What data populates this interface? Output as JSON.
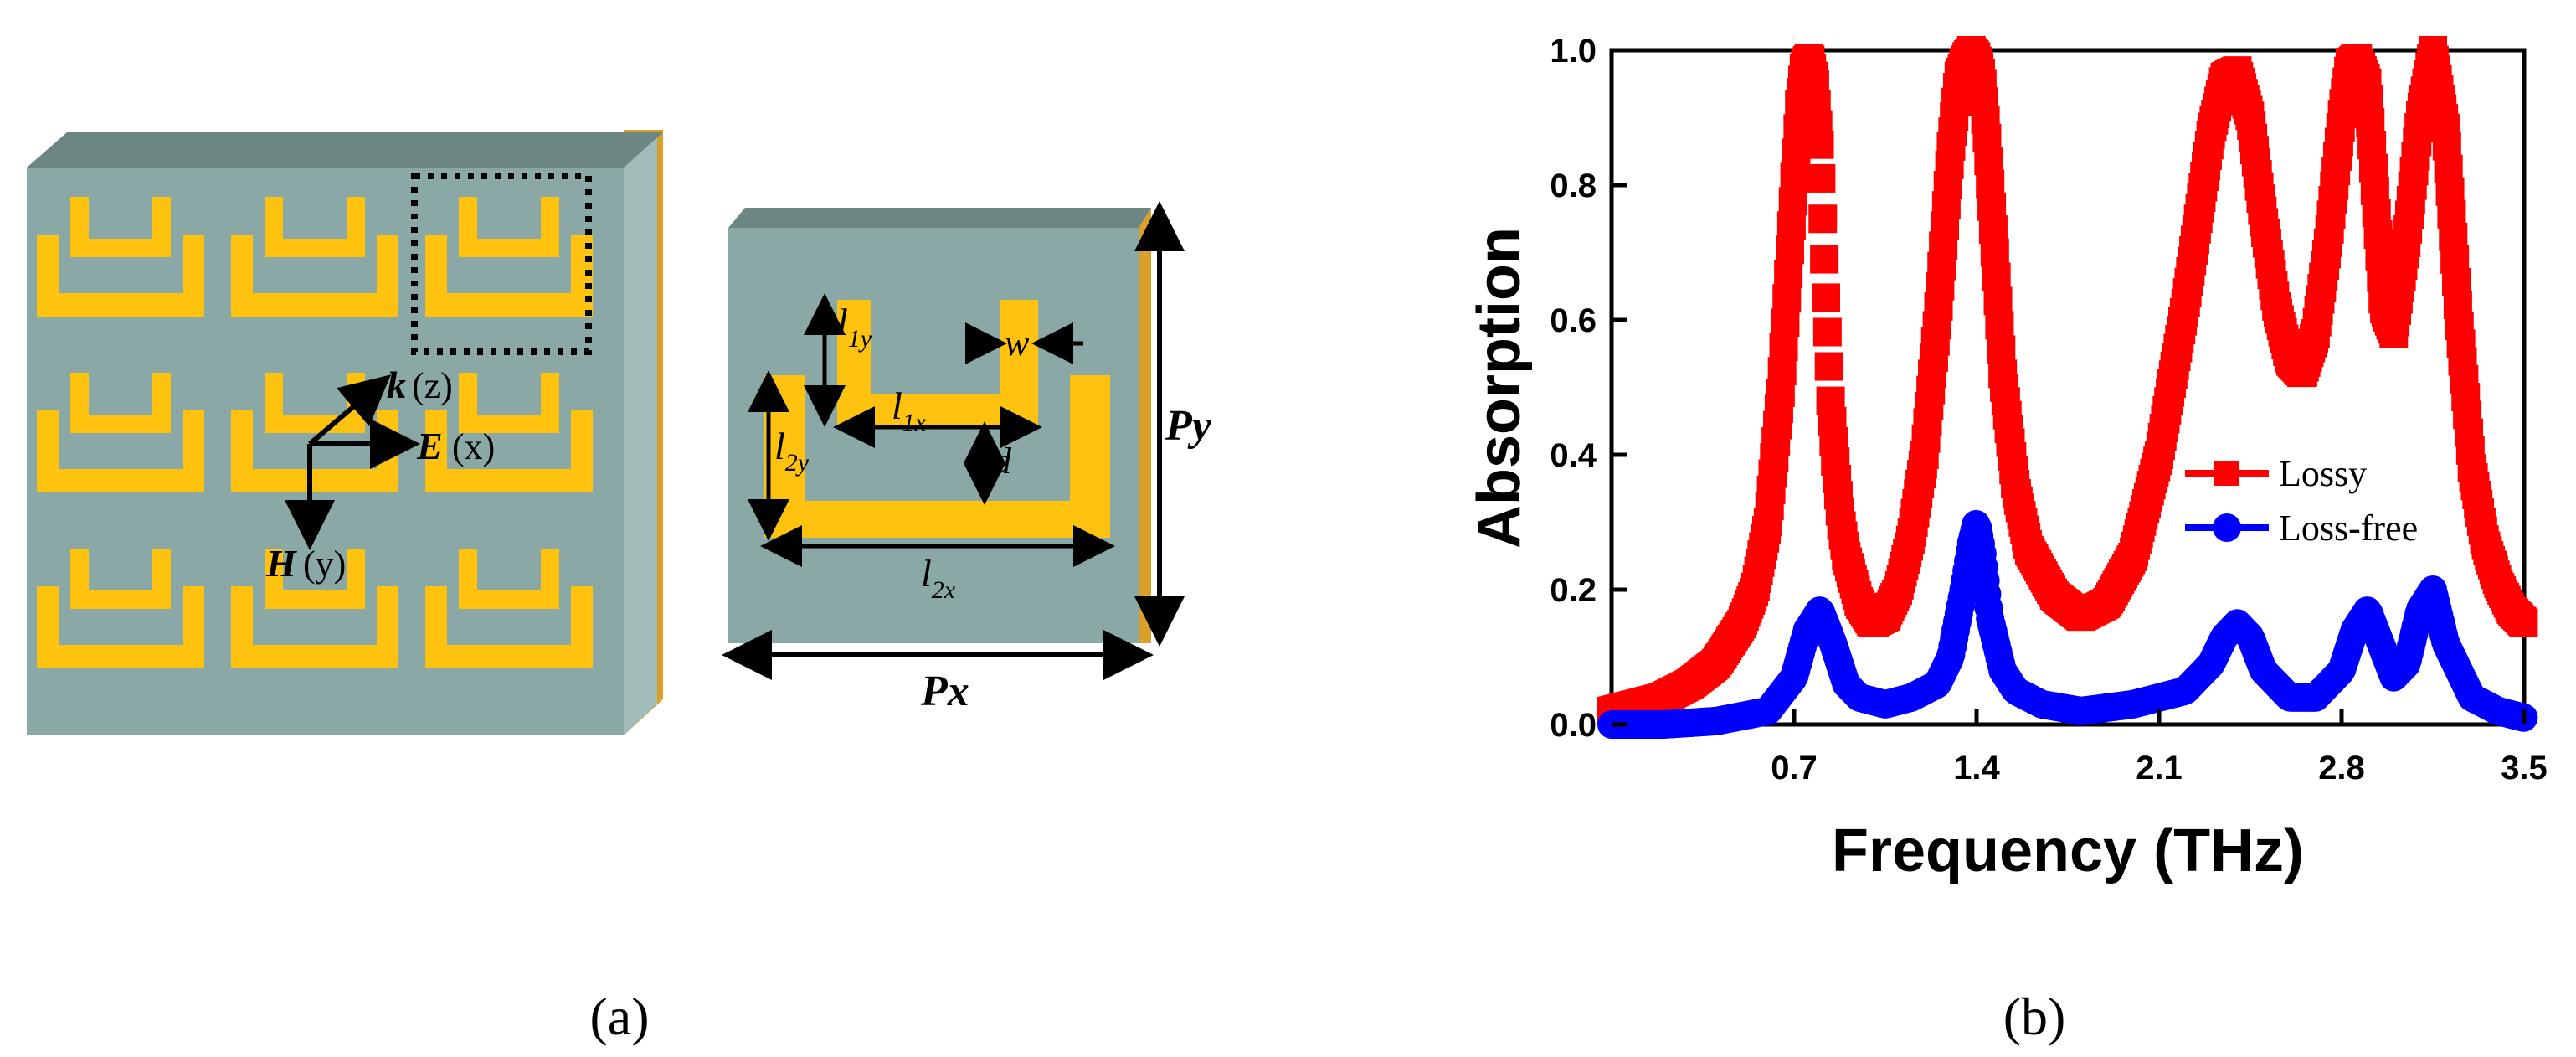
{
  "panel_a": {
    "field_labels": {
      "k": "k",
      "k_dir": "(z)",
      "e": "E",
      "e_dir": "(x)",
      "h": "H",
      "h_dir": "(y)"
    },
    "dimensions": {
      "l1y": "l",
      "l1y_sub": "1y",
      "l1x": "l",
      "l1x_sub": "1x",
      "l2y": "l",
      "l2y_sub": "2y",
      "l2x": "l",
      "l2x_sub": "2x",
      "w": "w",
      "d": "d",
      "px": "Px",
      "py": "Py"
    },
    "colors": {
      "substrate": "#8aa9a6",
      "substrate_top": "#6b8683",
      "resonator": "#ffc20e",
      "ground": "#d9a02a"
    },
    "caption": "(a)"
  },
  "chart_data": {
    "type": "scatter",
    "xlabel": "Frequency  (THz)",
    "ylabel": "Absorption",
    "xlim": [
      0.0,
      3.5
    ],
    "ylim": [
      0.0,
      1.0
    ],
    "xticks": [
      "0.7",
      "1.4",
      "2.1",
      "2.8",
      "3.5"
    ],
    "yticks": [
      "0.0",
      "0.2",
      "0.4",
      "0.6",
      "0.8",
      "1.0"
    ],
    "legend_position": "center-right",
    "series": [
      {
        "name": "Lossy",
        "color": "#ff0000",
        "marker": "square",
        "x": [
          0.0,
          0.1,
          0.2,
          0.3,
          0.4,
          0.5,
          0.55,
          0.6,
          0.65,
          0.7,
          0.72,
          0.74,
          0.76,
          0.78,
          0.8,
          0.82,
          0.84,
          0.86,
          0.88,
          0.9,
          0.95,
          1.0,
          1.05,
          1.1,
          1.15,
          1.2,
          1.25,
          1.3,
          1.33,
          1.36,
          1.38,
          1.4,
          1.42,
          1.44,
          1.47,
          1.5,
          1.55,
          1.6,
          1.7,
          1.8,
          1.9,
          2.0,
          2.1,
          2.2,
          2.3,
          2.35,
          2.4,
          2.45,
          2.5,
          2.55,
          2.6,
          2.65,
          2.7,
          2.75,
          2.8,
          2.83,
          2.86,
          2.9,
          2.93,
          2.96,
          3.0,
          3.05,
          3.1,
          3.15,
          3.2,
          3.25,
          3.3,
          3.35,
          3.4,
          3.45,
          3.5
        ],
        "y": [
          0.02,
          0.03,
          0.04,
          0.06,
          0.09,
          0.15,
          0.2,
          0.3,
          0.5,
          0.8,
          0.92,
          0.98,
          0.99,
          0.95,
          0.85,
          0.65,
          0.48,
          0.38,
          0.3,
          0.25,
          0.18,
          0.15,
          0.16,
          0.2,
          0.28,
          0.4,
          0.6,
          0.85,
          0.96,
          0.99,
          1.0,
          0.99,
          0.96,
          0.87,
          0.7,
          0.52,
          0.35,
          0.26,
          0.19,
          0.16,
          0.18,
          0.25,
          0.4,
          0.62,
          0.88,
          0.96,
          0.97,
          0.9,
          0.75,
          0.62,
          0.54,
          0.52,
          0.58,
          0.72,
          0.9,
          0.98,
          0.99,
          0.95,
          0.78,
          0.62,
          0.58,
          0.72,
          0.9,
          1.0,
          0.88,
          0.6,
          0.38,
          0.27,
          0.21,
          0.17,
          0.15
        ]
      },
      {
        "name": "Loss-free",
        "color": "#0000ff",
        "marker": "circle",
        "x": [
          0.0,
          0.2,
          0.4,
          0.6,
          0.7,
          0.75,
          0.8,
          0.85,
          0.9,
          0.95,
          1.05,
          1.15,
          1.25,
          1.3,
          1.35,
          1.38,
          1.4,
          1.42,
          1.45,
          1.5,
          1.55,
          1.65,
          1.8,
          2.0,
          2.2,
          2.3,
          2.35,
          2.4,
          2.45,
          2.5,
          2.6,
          2.7,
          2.8,
          2.85,
          2.9,
          2.95,
          3.0,
          3.05,
          3.1,
          3.15,
          3.2,
          3.3,
          3.4,
          3.5
        ],
        "y": [
          0.0,
          0.0,
          0.005,
          0.02,
          0.07,
          0.14,
          0.17,
          0.12,
          0.06,
          0.04,
          0.03,
          0.04,
          0.06,
          0.1,
          0.2,
          0.27,
          0.3,
          0.26,
          0.16,
          0.08,
          0.05,
          0.03,
          0.02,
          0.03,
          0.05,
          0.09,
          0.13,
          0.15,
          0.13,
          0.08,
          0.04,
          0.04,
          0.08,
          0.14,
          0.17,
          0.12,
          0.07,
          0.09,
          0.17,
          0.2,
          0.12,
          0.04,
          0.02,
          0.01
        ]
      }
    ]
  },
  "panel_b": {
    "caption": "(b)"
  }
}
